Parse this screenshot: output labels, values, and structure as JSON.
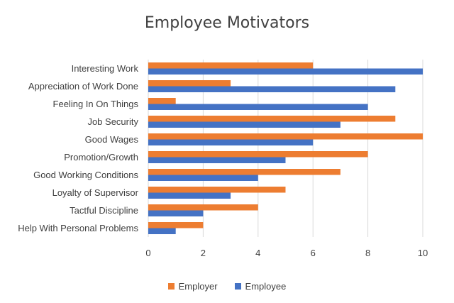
{
  "chart_data": {
    "type": "bar",
    "orientation": "horizontal",
    "title": "Employee Motivators",
    "xlabel": "",
    "ylabel": "",
    "xlim": [
      0,
      10
    ],
    "xticks": [
      0,
      2,
      4,
      6,
      8,
      10
    ],
    "grid": true,
    "legend_position": "bottom",
    "categories": [
      "Interesting Work",
      "Appreciation of Work Done",
      "Feeling In On Things",
      "Job Security",
      "Good Wages",
      "Promotion/Growth",
      "Good Working Conditions",
      "Loyalty of Supervisor",
      "Tactful Discipline",
      "Help With Personal Problems"
    ],
    "series": [
      {
        "name": "Employer",
        "color": "#ED7D31",
        "values": [
          6,
          3,
          1,
          9,
          10,
          8,
          7,
          5,
          4,
          2
        ]
      },
      {
        "name": "Employee",
        "color": "#4472C4",
        "values": [
          10,
          9,
          8,
          7,
          6,
          5,
          4,
          3,
          2,
          1
        ]
      }
    ]
  }
}
